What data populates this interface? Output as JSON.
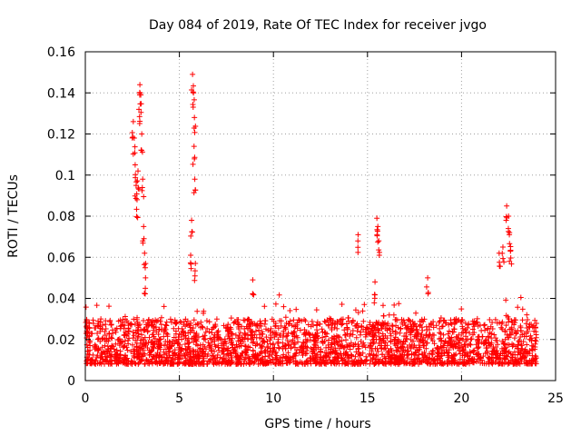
{
  "chart_data": {
    "type": "scatter",
    "title": "Day 084 of 2019, Rate Of TEC Index for receiver jvgo",
    "xlabel": "GPS time / hours",
    "ylabel": "ROTI / TECUs",
    "xlim": [
      0,
      25
    ],
    "ylim": [
      0,
      0.16
    ],
    "x_ticks": [
      0,
      5,
      10,
      15,
      20,
      25
    ],
    "x_tick_labels": [
      "0",
      "5",
      "10",
      "15",
      "20",
      "25"
    ],
    "y_ticks": [
      0,
      0.02,
      0.04,
      0.06,
      0.08,
      0.1,
      0.12,
      0.14,
      0.16
    ],
    "y_tick_labels": [
      "0",
      "0.02",
      "0.04",
      "0.06",
      "0.08",
      "0.1",
      "0.12",
      "0.14",
      "0.16"
    ],
    "grid": true,
    "marker": "+",
    "series": [
      {
        "name": "ROTI",
        "color": "#ff0000",
        "x_range": [
          0,
          24
        ],
        "baseline_band": [
          0.008,
          0.03
        ],
        "highlights": [
          {
            "x": 2.55,
            "y": 0.126
          },
          {
            "x": 2.6,
            "y": 0.118
          },
          {
            "x": 2.65,
            "y": 0.105
          },
          {
            "x": 2.7,
            "y": 0.095
          },
          {
            "x": 2.75,
            "y": 0.088
          },
          {
            "x": 2.8,
            "y": 0.102
          },
          {
            "x": 2.85,
            "y": 0.132
          },
          {
            "x": 2.9,
            "y": 0.144
          },
          {
            "x": 2.95,
            "y": 0.139
          },
          {
            "x": 3.0,
            "y": 0.12
          },
          {
            "x": 3.05,
            "y": 0.098
          },
          {
            "x": 3.1,
            "y": 0.075
          },
          {
            "x": 3.15,
            "y": 0.062
          },
          {
            "x": 3.2,
            "y": 0.05
          },
          {
            "x": 5.6,
            "y": 0.061
          },
          {
            "x": 5.65,
            "y": 0.078
          },
          {
            "x": 5.7,
            "y": 0.149
          },
          {
            "x": 5.75,
            "y": 0.14
          },
          {
            "x": 5.8,
            "y": 0.128
          },
          {
            "x": 5.78,
            "y": 0.114
          },
          {
            "x": 5.82,
            "y": 0.098
          },
          {
            "x": 5.85,
            "y": 0.057
          },
          {
            "x": 8.9,
            "y": 0.049
          },
          {
            "x": 14.5,
            "y": 0.071
          },
          {
            "x": 15.5,
            "y": 0.079
          },
          {
            "x": 15.55,
            "y": 0.075
          },
          {
            "x": 15.6,
            "y": 0.068
          },
          {
            "x": 15.4,
            "y": 0.048
          },
          {
            "x": 18.2,
            "y": 0.05
          },
          {
            "x": 22.0,
            "y": 0.062
          },
          {
            "x": 22.2,
            "y": 0.065
          },
          {
            "x": 22.4,
            "y": 0.085
          },
          {
            "x": 22.5,
            "y": 0.08
          },
          {
            "x": 22.55,
            "y": 0.072
          },
          {
            "x": 22.6,
            "y": 0.063
          }
        ]
      }
    ]
  }
}
